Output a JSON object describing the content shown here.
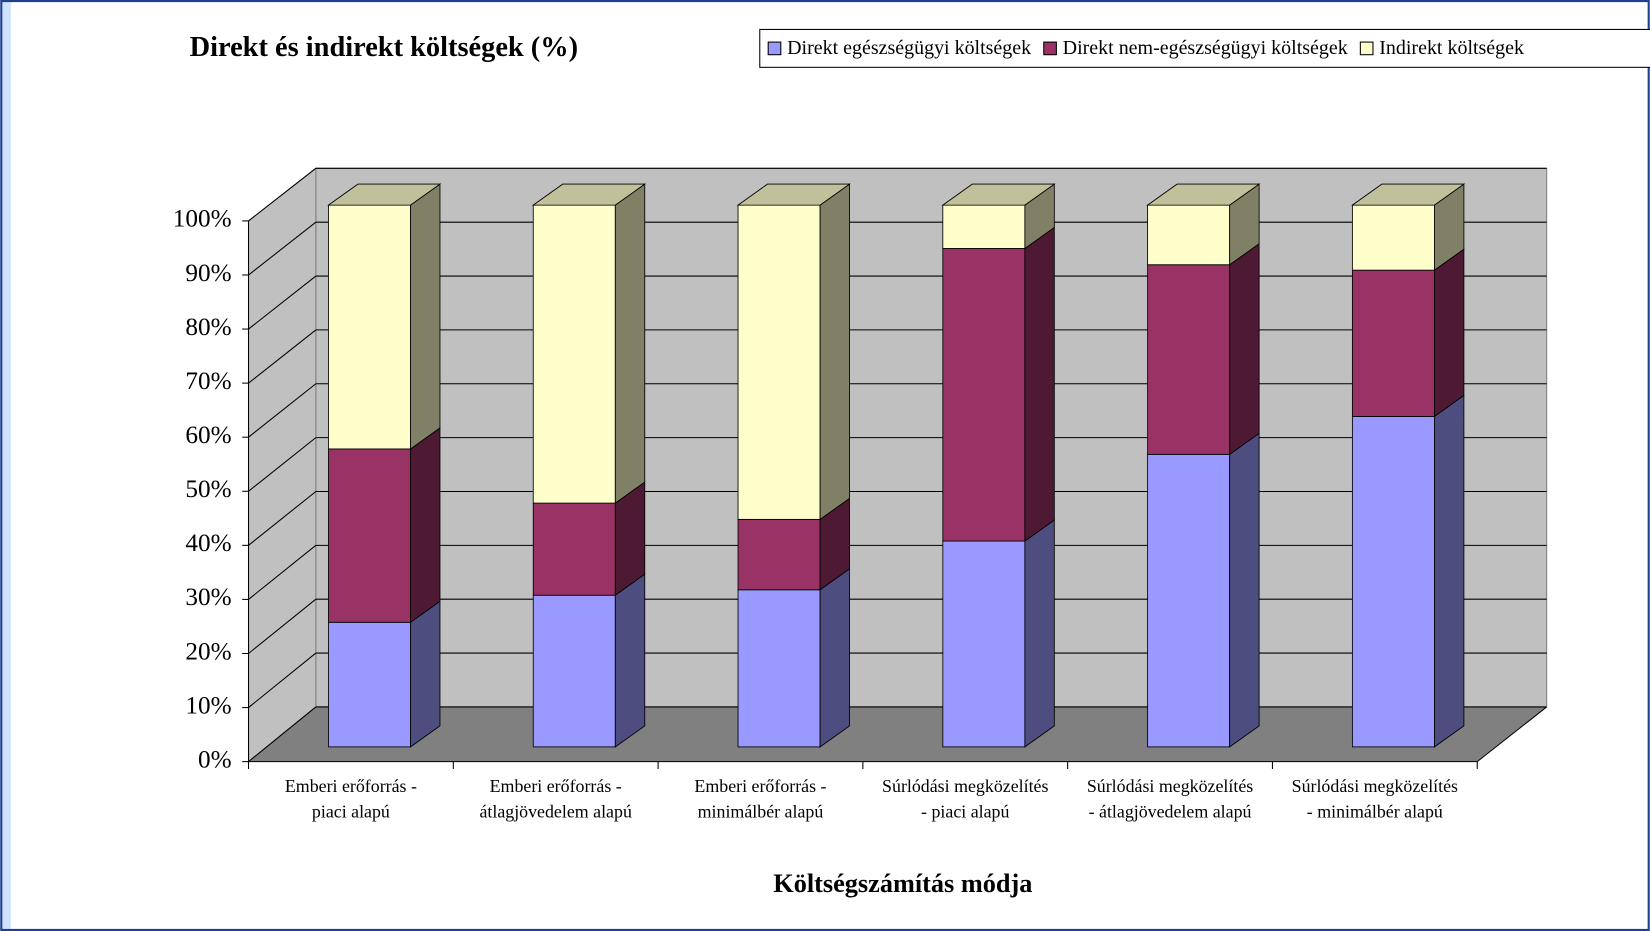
{
  "chart_data": {
    "type": "bar",
    "stacked": true,
    "title": "Direkt és indirekt költségek (%)",
    "x_label": "Költségszámítás módja",
    "categories": [
      "Emberi erőforrás -\npiaci alapú",
      "Emberi erőforrás -\nátlagjövedelem alapú",
      "Emberi erőforrás -\nminimálbér alapú",
      "Súrlódási megközelítés\n- piaci alapú",
      "Súrlódási megközelítés\n- átlagjövedelem alapú",
      "Súrlódási megközelítés\n- minimálbér alapú"
    ],
    "series": [
      {
        "name": "Direkt egészségügyi költségek",
        "color": "#9999ff",
        "side": "#4d4d80",
        "values": [
          23,
          28,
          29,
          38,
          54,
          61
        ]
      },
      {
        "name": "Direkt nem-egészségügyi költségek",
        "color": "#993366",
        "side": "#4d1933",
        "values": [
          32,
          17,
          13,
          54,
          35,
          27
        ]
      },
      {
        "name": "Indirekt költségek",
        "color": "#ffffcc",
        "side": "#808066",
        "top": "#c0c09a",
        "values": [
          45,
          55,
          58,
          8,
          11,
          12
        ]
      }
    ],
    "ylim": [
      0,
      100
    ],
    "yticks": [
      {
        "value": 0,
        "label": "0%"
      },
      {
        "value": 10,
        "label": "10%"
      },
      {
        "value": 20,
        "label": "20%"
      },
      {
        "value": 30,
        "label": "30%"
      },
      {
        "value": 40,
        "label": "40%"
      },
      {
        "value": 50,
        "label": "50%"
      },
      {
        "value": 60,
        "label": "60%"
      },
      {
        "value": 70,
        "label": "70%"
      },
      {
        "value": 80,
        "label": "80%"
      },
      {
        "value": 90,
        "label": "90%"
      },
      {
        "value": 100,
        "label": "100%"
      }
    ],
    "grid": true,
    "legend": "top"
  }
}
